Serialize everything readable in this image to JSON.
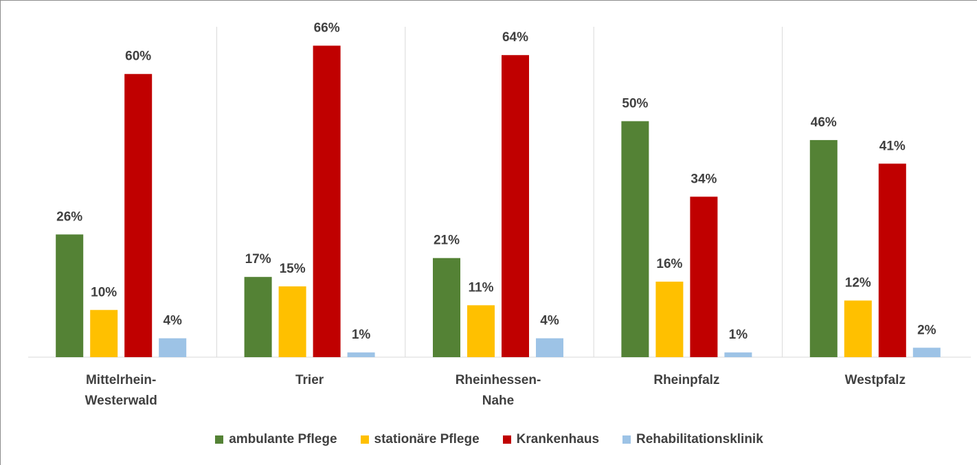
{
  "chart_data": {
    "type": "bar",
    "categories": [
      "Mittelrhein-Westerwald",
      "Trier",
      "Rheinhessen-Nahe",
      "Rheinpfalz",
      "Westpfalz"
    ],
    "series": [
      {
        "name": "ambulante Pflege",
        "color": "#548235",
        "values": [
          26,
          17,
          21,
          50,
          46
        ],
        "value_labels": [
          "26%",
          "17%",
          "21%",
          "50%",
          "46%"
        ]
      },
      {
        "name": "stationäre Pflege",
        "color": "#ffc000",
        "values": [
          10,
          15,
          11,
          16,
          12
        ],
        "value_labels": [
          "10%",
          "15%",
          "11%",
          "16%",
          "12%"
        ]
      },
      {
        "name": "Krankenhaus",
        "color": "#c00000",
        "values": [
          60,
          66,
          64,
          34,
          41
        ],
        "value_labels": [
          "60%",
          "66%",
          "64%",
          "34%",
          "41%"
        ]
      },
      {
        "name": "Rehabilitationsklinik",
        "color": "#9dc3e6",
        "values": [
          4,
          1,
          4,
          1,
          2
        ],
        "value_labels": [
          "4%",
          "1%",
          "4%",
          "1%",
          "2%"
        ]
      }
    ],
    "ylim": [
      0,
      70
    ],
    "legend": "bottom"
  }
}
